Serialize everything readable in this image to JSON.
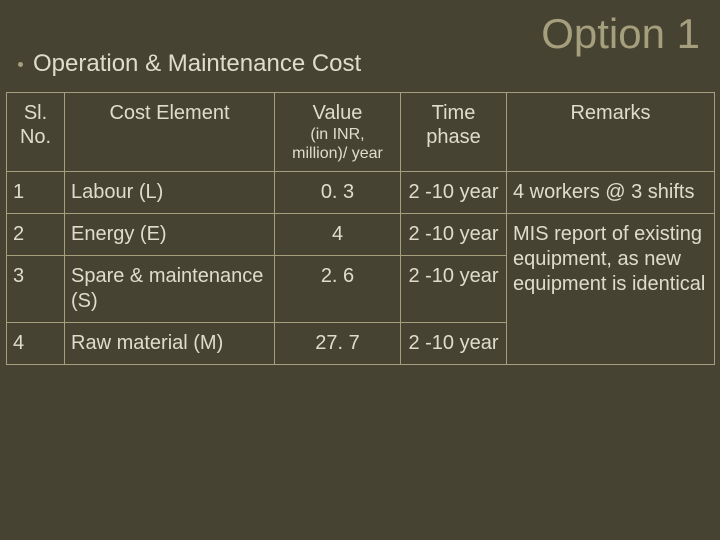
{
  "title": "Option 1",
  "subtitle": "Operation & Maintenance Cost",
  "columns": {
    "sl": "Sl. No.",
    "elem": "Cost Element",
    "val_main": "Value",
    "val_sub": "(in INR, million)/ year",
    "time": "Time phase",
    "rem": "Remarks"
  },
  "rows": [
    {
      "sl": "1",
      "elem": "Labour (L)",
      "val": "0. 3",
      "time": "2 -10 year",
      "rem": "4 workers @ 3 shifts"
    },
    {
      "sl": "2",
      "elem": "Energy (E)",
      "val": "4",
      "time": "2 -10 year",
      "rem": "MIS report of existing equipment, as new equipment is identical"
    },
    {
      "sl": "3",
      "elem": "Spare & maintenance (S)",
      "val": "2. 6",
      "time": "2 -10 year",
      "rem": ""
    },
    {
      "sl": "4",
      "elem": "Raw material (M)",
      "val": "27. 7",
      "time": "2 -10 year",
      "rem": ""
    }
  ],
  "remark_rowspan_start": 1,
  "remark_rowspan_length": 3,
  "colors": {
    "bg": "#464332",
    "border": "#a69f7d",
    "text": "#e0dccc",
    "title": "#a69f7d"
  }
}
